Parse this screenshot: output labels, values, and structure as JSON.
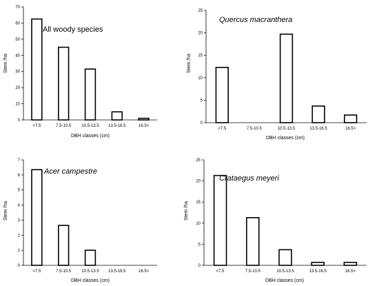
{
  "chart_data": [
    {
      "type": "bar",
      "title": "All woody species",
      "xlabel": "DBH classes (cm)",
      "ylabel": "Stem /ha",
      "categories": [
        "<7.5",
        "7.5-10.5",
        "10.5-13.5",
        "13.5-16.5",
        "16.5>"
      ],
      "values": [
        62.5,
        45,
        31.5,
        5,
        1
      ],
      "ylim": [
        0,
        70
      ],
      "yticks": [
        0,
        10,
        20,
        30,
        40,
        50,
        60,
        70
      ],
      "title_italic": false,
      "legend": "none",
      "grid": false
    },
    {
      "type": "bar",
      "title": "Quercus macranthera",
      "xlabel": "DBH classes (cm)",
      "ylabel": "Stem /ha",
      "categories": [
        "<7.5",
        "7.5-10.5",
        "10.5-13.5",
        "13.5-16.5",
        "16.5>"
      ],
      "values": [
        12.3,
        0,
        19.7,
        3.7,
        1.7
      ],
      "ylim": [
        0,
        25
      ],
      "yticks": [
        0,
        5,
        10,
        15,
        20,
        25
      ],
      "title_italic": true,
      "legend": "none",
      "grid": false
    },
    {
      "type": "bar",
      "title": "Acer campestre",
      "xlabel": "DBH classes (cm)",
      "ylabel": "Stem /ha",
      "categories": [
        "<7.5",
        "7.5-10.5",
        "10.5-13.5",
        "13.5-16.5",
        "16.5>"
      ],
      "values": [
        6.35,
        2.65,
        1.0,
        0,
        0
      ],
      "ylim": [
        0,
        7
      ],
      "yticks": [
        0,
        1,
        2,
        3,
        4,
        5,
        6,
        7
      ],
      "title_italic": true,
      "legend": "none",
      "grid": false
    },
    {
      "type": "bar",
      "title": "Crataegus meyeri",
      "xlabel": "DBH classes (cm)",
      "ylabel": "Stem /ha",
      "categories": [
        "<7.5",
        "7.5-10.5",
        "10.5-13.5",
        "13.5-16.5",
        "16.5>"
      ],
      "values": [
        21.3,
        11.3,
        3.7,
        0.7,
        0.7
      ],
      "ylim": [
        0,
        25
      ],
      "yticks": [
        0,
        5,
        10,
        15,
        20,
        25
      ],
      "title_italic": true,
      "legend": "none",
      "grid": false
    }
  ]
}
